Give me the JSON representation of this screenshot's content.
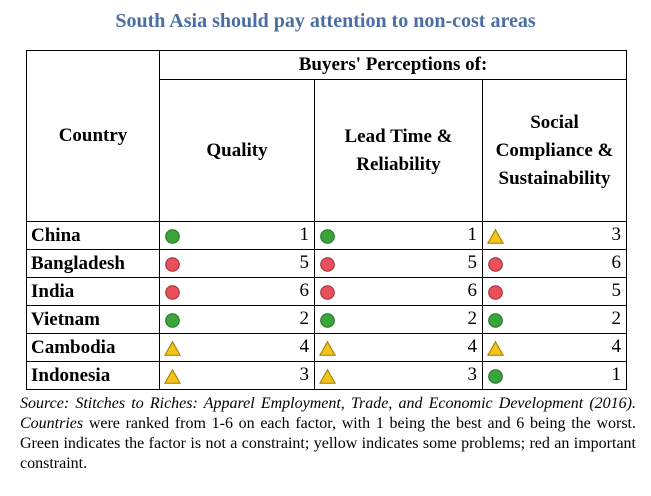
{
  "title": "South Asia should pay attention to non-cost areas",
  "chart_data": {
    "type": "table",
    "header_group": "Buyers' Perceptions of:",
    "row_header": "Country",
    "columns": [
      [
        "Quality"
      ],
      [
        "Lead Time &",
        "Reliability"
      ],
      [
        "Social",
        "Compliance &",
        "Sustainability"
      ]
    ],
    "rows": [
      {
        "country": "China",
        "ranks": [
          1,
          1,
          3
        ],
        "status": [
          "green",
          "green",
          "yellow"
        ]
      },
      {
        "country": "Bangladesh",
        "ranks": [
          5,
          5,
          6
        ],
        "status": [
          "red",
          "red",
          "red"
        ]
      },
      {
        "country": "India",
        "ranks": [
          6,
          6,
          5
        ],
        "status": [
          "red",
          "red",
          "red"
        ]
      },
      {
        "country": "Vietnam",
        "ranks": [
          2,
          2,
          2
        ],
        "status": [
          "green",
          "green",
          "green"
        ]
      },
      {
        "country": "Cambodia",
        "ranks": [
          4,
          4,
          4
        ],
        "status": [
          "yellow",
          "yellow",
          "yellow"
        ]
      },
      {
        "country": "Indonesia",
        "ranks": [
          3,
          3,
          1
        ],
        "status": [
          "yellow",
          "yellow",
          "green"
        ]
      }
    ],
    "colors": {
      "green": "#3aa63a",
      "red": "#e8505b",
      "yellow": "#f2c418"
    }
  },
  "source": {
    "italic": "Source: Stitches to Riches: Apparel Employment, Trade, and Economic Development (2016). Countries",
    "plain": " were ranked from 1-6 on each factor, with 1 being the best and 6 being the worst. Green indicates the factor is not a constraint; yellow indicates some problems; red an important constraint."
  }
}
